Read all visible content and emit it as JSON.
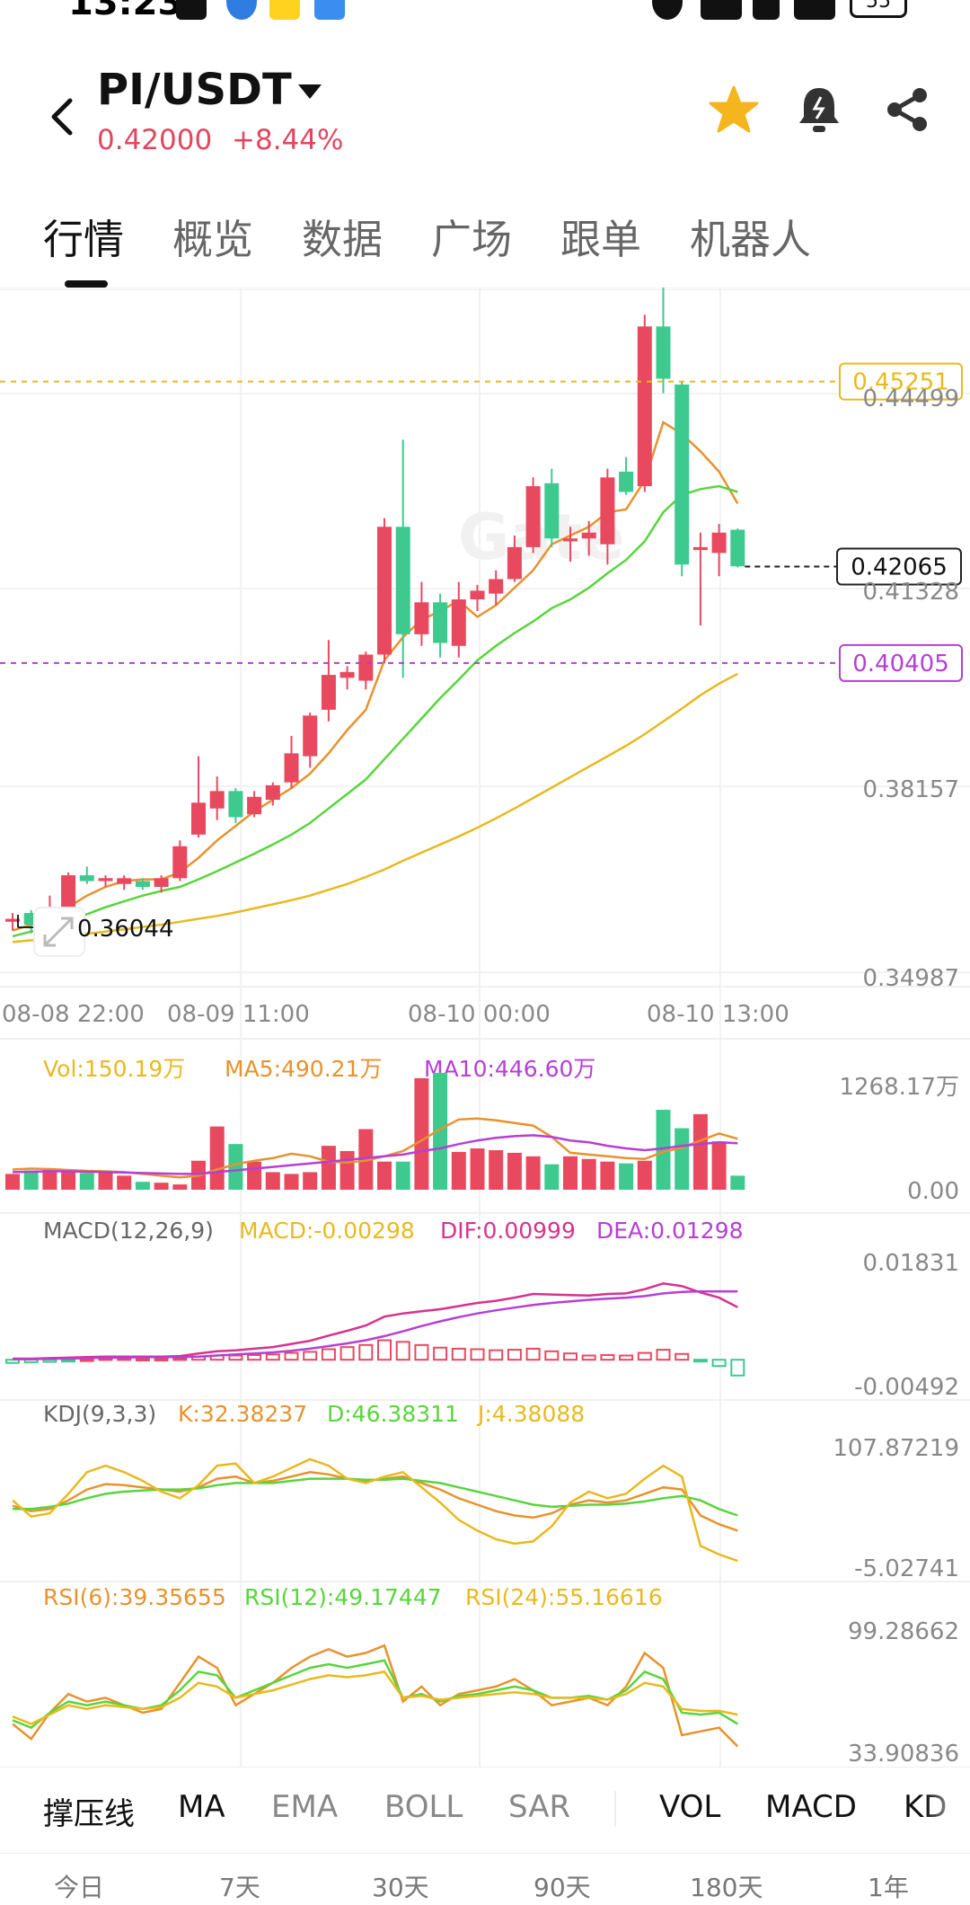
{
  "status_bar": {
    "time": "13:23",
    "battery": "55"
  },
  "header": {
    "pair": "PI/USDT",
    "last_price": "0.42000",
    "change_pct": "+8.44%"
  },
  "tabs": [
    "行情",
    "概览",
    "数据",
    "广场",
    "跟单",
    "机器人"
  ],
  "active_tab": 0,
  "price_chart": {
    "ylabels": [
      "0.44499",
      "0.41328",
      "0.38157",
      "0.34987"
    ],
    "price_tags": {
      "top_line": "0.45251",
      "current": "0.42065",
      "bottom_line": "0.40405"
    },
    "low_marker": "0.36044",
    "xlabels": [
      "08-08 22:00",
      "08-09 11:00",
      "08-10 00:00",
      "08-10 13:00"
    ],
    "watermark": "Gate",
    "colors": {
      "up": "#e8495f",
      "down": "#3ec98f",
      "ma_orange": "#e8922e",
      "ma_green": "#58d53c",
      "ma_yellow": "#e8b920",
      "line_yellow": "#e8b920",
      "line_purple": "#b63fd4"
    }
  },
  "chart_data": [
    {
      "type": "candlestick",
      "title": "PI/USDT",
      "ylim": [
        0.34987,
        0.4687
      ],
      "candles": [
        {
          "o": 0.3595,
          "h": 0.361,
          "l": 0.358,
          "c": 0.36
        },
        {
          "o": 0.361,
          "h": 0.3615,
          "l": 0.3575,
          "c": 0.359
        },
        {
          "o": 0.3595,
          "h": 0.364,
          "l": 0.3585,
          "c": 0.3605
        },
        {
          "o": 0.3605,
          "h": 0.368,
          "l": 0.36,
          "c": 0.3675
        },
        {
          "o": 0.3675,
          "h": 0.369,
          "l": 0.366,
          "c": 0.3665
        },
        {
          "o": 0.3665,
          "h": 0.3675,
          "l": 0.3655,
          "c": 0.367
        },
        {
          "o": 0.366,
          "h": 0.3675,
          "l": 0.365,
          "c": 0.367
        },
        {
          "o": 0.3665,
          "h": 0.367,
          "l": 0.365,
          "c": 0.3655
        },
        {
          "o": 0.3655,
          "h": 0.3675,
          "l": 0.3645,
          "c": 0.367
        },
        {
          "o": 0.367,
          "h": 0.3735,
          "l": 0.3665,
          "c": 0.3725
        },
        {
          "o": 0.3745,
          "h": 0.388,
          "l": 0.374,
          "c": 0.38
        },
        {
          "o": 0.379,
          "h": 0.3845,
          "l": 0.377,
          "c": 0.382
        },
        {
          "o": 0.382,
          "h": 0.3825,
          "l": 0.3765,
          "c": 0.3775
        },
        {
          "o": 0.378,
          "h": 0.382,
          "l": 0.3775,
          "c": 0.381
        },
        {
          "o": 0.3805,
          "h": 0.3835,
          "l": 0.3795,
          "c": 0.383
        },
        {
          "o": 0.3835,
          "h": 0.3915,
          "l": 0.3825,
          "c": 0.3885
        },
        {
          "o": 0.388,
          "h": 0.3955,
          "l": 0.386,
          "c": 0.395
        },
        {
          "o": 0.396,
          "h": 0.408,
          "l": 0.394,
          "c": 0.402
        },
        {
          "o": 0.4015,
          "h": 0.4035,
          "l": 0.3995,
          "c": 0.4025
        },
        {
          "o": 0.401,
          "h": 0.406,
          "l": 0.3995,
          "c": 0.4055
        },
        {
          "o": 0.4055,
          "h": 0.429,
          "l": 0.404,
          "c": 0.4275
        },
        {
          "o": 0.4275,
          "h": 0.4425,
          "l": 0.4015,
          "c": 0.409
        },
        {
          "o": 0.409,
          "h": 0.418,
          "l": 0.407,
          "c": 0.4145
        },
        {
          "o": 0.4145,
          "h": 0.416,
          "l": 0.405,
          "c": 0.4075
        },
        {
          "o": 0.407,
          "h": 0.418,
          "l": 0.405,
          "c": 0.415
        },
        {
          "o": 0.415,
          "h": 0.4175,
          "l": 0.413,
          "c": 0.4165
        },
        {
          "o": 0.416,
          "h": 0.42,
          "l": 0.414,
          "c": 0.4185
        },
        {
          "o": 0.4185,
          "h": 0.426,
          "l": 0.418,
          "c": 0.424
        },
        {
          "o": 0.424,
          "h": 0.436,
          "l": 0.423,
          "c": 0.4345
        },
        {
          "o": 0.435,
          "h": 0.4375,
          "l": 0.424,
          "c": 0.4255
        },
        {
          "o": 0.425,
          "h": 0.4275,
          "l": 0.4215,
          "c": 0.4255
        },
        {
          "o": 0.4255,
          "h": 0.4285,
          "l": 0.4225,
          "c": 0.4265
        },
        {
          "o": 0.4245,
          "h": 0.4375,
          "l": 0.421,
          "c": 0.436
        },
        {
          "o": 0.437,
          "h": 0.4395,
          "l": 0.433,
          "c": 0.4335
        },
        {
          "o": 0.4345,
          "h": 0.464,
          "l": 0.4335,
          "c": 0.462
        },
        {
          "o": 0.462,
          "h": 0.4687,
          "l": 0.4505,
          "c": 0.453
        },
        {
          "o": 0.452,
          "h": 0.4525,
          "l": 0.419,
          "c": 0.421
        },
        {
          "o": 0.4235,
          "h": 0.4265,
          "l": 0.4105,
          "c": 0.424
        },
        {
          "o": 0.423,
          "h": 0.428,
          "l": 0.419,
          "c": 0.4265
        },
        {
          "o": 0.427,
          "h": 0.4272,
          "l": 0.4205,
          "c": 0.4207
        }
      ],
      "ma": [
        {
          "color": "#e8922e",
          "values": [
            0.358,
            0.359,
            0.3597,
            0.362,
            0.364,
            0.3655,
            0.3665,
            0.3668,
            0.3668,
            0.368,
            0.3705,
            0.3735,
            0.376,
            0.3785,
            0.3805,
            0.3825,
            0.385,
            0.3885,
            0.3925,
            0.396,
            0.4045,
            0.4085,
            0.4115,
            0.413,
            0.4148,
            0.412,
            0.414,
            0.417,
            0.42,
            0.4245,
            0.426,
            0.4275,
            0.43,
            0.4305,
            0.4355,
            0.4455,
            0.4435,
            0.4405,
            0.437,
            0.4315
          ]
        },
        {
          "color": "#58d53c",
          "values": [
            0.357,
            0.3578,
            0.3585,
            0.3595,
            0.3608,
            0.362,
            0.363,
            0.364,
            0.3648,
            0.3655,
            0.3668,
            0.3682,
            0.3697,
            0.3712,
            0.3728,
            0.3745,
            0.3765,
            0.379,
            0.3815,
            0.384,
            0.3875,
            0.391,
            0.3945,
            0.398,
            0.4012,
            0.4045,
            0.407,
            0.4092,
            0.4112,
            0.4135,
            0.415,
            0.417,
            0.4195,
            0.4218,
            0.425,
            0.43,
            0.433,
            0.434,
            0.4345,
            0.4335
          ]
        },
        {
          "color": "#e8b920",
          "values": [
            0.356,
            0.3563,
            0.3566,
            0.357,
            0.3574,
            0.3578,
            0.3582,
            0.3586,
            0.359,
            0.3595,
            0.36,
            0.3605,
            0.3611,
            0.3618,
            0.3625,
            0.3632,
            0.364,
            0.365,
            0.366,
            0.3672,
            0.3685,
            0.37,
            0.3714,
            0.3728,
            0.3742,
            0.3757,
            0.3773,
            0.379,
            0.3808,
            0.3826,
            0.3844,
            0.3862,
            0.388,
            0.3898,
            0.3918,
            0.394,
            0.3962,
            0.3985,
            0.4005,
            0.4022
          ]
        }
      ],
      "lines": {
        "top": 0.45251,
        "bottom": 0.40405
      },
      "current_price": 0.42065
    },
    {
      "type": "bar",
      "title": "Vol",
      "ylim": [
        0,
        1268.17
      ],
      "legend": {
        "vol": "Vol:150.19万",
        "ma5": "MA5:490.21万",
        "ma10": "MA10:446.60万"
      },
      "ylabels": {
        "top": "1268.17万",
        "bottom": "0.00"
      },
      "values": [
        180,
        220,
        240,
        230,
        190,
        200,
        160,
        90,
        80,
        60,
        330,
        720,
        520,
        320,
        200,
        180,
        200,
        500,
        440,
        690,
        320,
        320,
        1270,
        1330,
        430,
        470,
        450,
        420,
        380,
        290,
        380,
        350,
        320,
        300,
        330,
        910,
        700,
        860,
        550,
        160
      ],
      "ma5": [
        230,
        240,
        235,
        225,
        215,
        210,
        200,
        180,
        160,
        140,
        160,
        230,
        290,
        330,
        360,
        410,
        380,
        320,
        310,
        330,
        380,
        440,
        560,
        690,
        800,
        810,
        790,
        760,
        730,
        600,
        420,
        400,
        380,
        360,
        350,
        430,
        480,
        560,
        640,
        580
      ],
      "ma10": [
        200,
        205,
        210,
        210,
        205,
        200,
        195,
        190,
        185,
        180,
        180,
        200,
        220,
        240,
        260,
        280,
        300,
        320,
        340,
        360,
        380,
        400,
        440,
        470,
        520,
        560,
        590,
        610,
        620,
        600,
        560,
        540,
        500,
        470,
        450,
        470,
        500,
        520,
        540,
        530
      ]
    },
    {
      "type": "line",
      "title": "MACD(12,26,9)",
      "ylim": [
        -0.00492,
        0.01831
      ],
      "legend": {
        "macd": "MACD:-0.00298",
        "dif": "DIF:0.00999",
        "dea": "DEA:0.01298"
      },
      "ylabels": {
        "top": "0.01831",
        "bottom": "-0.00492"
      },
      "dif": [
        0.0002,
        0.0002,
        0.0003,
        0.0004,
        0.0005,
        0.0006,
        0.0006,
        0.0006,
        0.0006,
        0.0007,
        0.0012,
        0.0016,
        0.0018,
        0.0021,
        0.0024,
        0.003,
        0.0036,
        0.0046,
        0.0055,
        0.0065,
        0.0082,
        0.0088,
        0.0092,
        0.0096,
        0.0102,
        0.0108,
        0.0112,
        0.0118,
        0.0125,
        0.0124,
        0.0123,
        0.0122,
        0.0125,
        0.0126,
        0.0134,
        0.0145,
        0.014,
        0.0128,
        0.0118,
        0.01
      ],
      "dea": [
        0.0001,
        0.0001,
        0.0002,
        0.0002,
        0.0003,
        0.0004,
        0.0004,
        0.0005,
        0.0005,
        0.0005,
        0.0006,
        0.0008,
        0.001,
        0.0012,
        0.0014,
        0.0017,
        0.0021,
        0.0026,
        0.0031,
        0.0037,
        0.0045,
        0.0054,
        0.0064,
        0.0073,
        0.0081,
        0.0088,
        0.0094,
        0.0099,
        0.0104,
        0.0108,
        0.0111,
        0.0114,
        0.0116,
        0.0118,
        0.0121,
        0.0126,
        0.0129,
        0.013,
        0.013,
        0.013
      ],
      "hist": [
        -0.0006,
        -0.0005,
        -0.0004,
        -0.0002,
        0.0001,
        0.0003,
        0.0003,
        0.0002,
        0.0002,
        0.0003,
        0.0006,
        0.0008,
        0.0008,
        0.0009,
        0.001,
        0.0013,
        0.0015,
        0.002,
        0.0024,
        0.0028,
        0.0037,
        0.0034,
        0.0028,
        0.0023,
        0.0021,
        0.002,
        0.0018,
        0.0019,
        0.0021,
        0.0016,
        0.0012,
        0.0008,
        0.0009,
        0.0008,
        0.0013,
        0.0019,
        0.0011,
        -0.0002,
        -0.0012,
        -0.003
      ]
    },
    {
      "type": "line",
      "title": "KDJ(9,3,3)",
      "ylim": [
        -5.02741,
        107.87219
      ],
      "legend": {
        "k": "K:32.38237",
        "d": "D:46.38311",
        "j": "J:4.38088"
      },
      "ylabels": {
        "top": "107.87219",
        "bottom": "-5.02741"
      },
      "k": [
        55,
        50,
        52,
        60,
        70,
        75,
        74,
        72,
        70,
        68,
        72,
        80,
        82,
        76,
        78,
        82,
        86,
        84,
        80,
        78,
        80,
        82,
        76,
        70,
        62,
        56,
        50,
        46,
        44,
        48,
        56,
        60,
        58,
        60,
        66,
        72,
        70,
        46,
        38,
        32
      ],
      "d": [
        52,
        52,
        54,
        57,
        62,
        66,
        68,
        69,
        70,
        70,
        71,
        74,
        76,
        76,
        76,
        78,
        80,
        80,
        80,
        79,
        79,
        80,
        78,
        76,
        72,
        68,
        64,
        60,
        56,
        54,
        55,
        56,
        56,
        57,
        59,
        62,
        64,
        60,
        52,
        46
      ],
      "j": [
        60,
        45,
        48,
        66,
        86,
        92,
        86,
        78,
        68,
        62,
        74,
        92,
        94,
        76,
        82,
        90,
        98,
        92,
        80,
        76,
        82,
        86,
        72,
        58,
        42,
        32,
        24,
        20,
        22,
        36,
        58,
        68,
        62,
        66,
        80,
        92,
        82,
        18,
        10,
        4
      ]
    },
    {
      "type": "line",
      "title": "RSI",
      "ylim": [
        33.90836,
        99.28662
      ],
      "legend": {
        "rsi6": "RSI(6):39.35655",
        "rsi12": "RSI(12):49.17447",
        "rsi24": "RSI(24):55.16616"
      },
      "ylabels": {
        "top": "99.28662",
        "bottom": "33.90836"
      },
      "rsi6": [
        50,
        42,
        56,
        66,
        62,
        64,
        60,
        56,
        58,
        72,
        86,
        80,
        60,
        66,
        72,
        80,
        86,
        90,
        86,
        88,
        92,
        62,
        70,
        60,
        66,
        68,
        70,
        74,
        68,
        60,
        62,
        64,
        60,
        70,
        88,
        80,
        44,
        46,
        48,
        38
      ],
      "rsi12": [
        52,
        48,
        56,
        62,
        60,
        62,
        60,
        58,
        60,
        68,
        78,
        76,
        64,
        68,
        72,
        76,
        80,
        82,
        80,
        82,
        84,
        64,
        66,
        62,
        65,
        66,
        68,
        70,
        68,
        64,
        64,
        65,
        63,
        68,
        78,
        74,
        56,
        55,
        56,
        50
      ],
      "rsi24": [
        54,
        50,
        55,
        60,
        58,
        60,
        59,
        58,
        59,
        64,
        72,
        70,
        64,
        66,
        68,
        71,
        74,
        76,
        75,
        76,
        78,
        64,
        65,
        63,
        64,
        65,
        66,
        67,
        66,
        64,
        64,
        64,
        63,
        66,
        72,
        70,
        58,
        57,
        57,
        55
      ]
    }
  ],
  "indicator_bar": [
    "撑压线",
    "MA",
    "EMA",
    "BOLL",
    "SAR",
    "VOL",
    "MACD",
    "KD"
  ],
  "range_bar": [
    "今日",
    "7天",
    "30天",
    "90天",
    "180天",
    "1年"
  ]
}
